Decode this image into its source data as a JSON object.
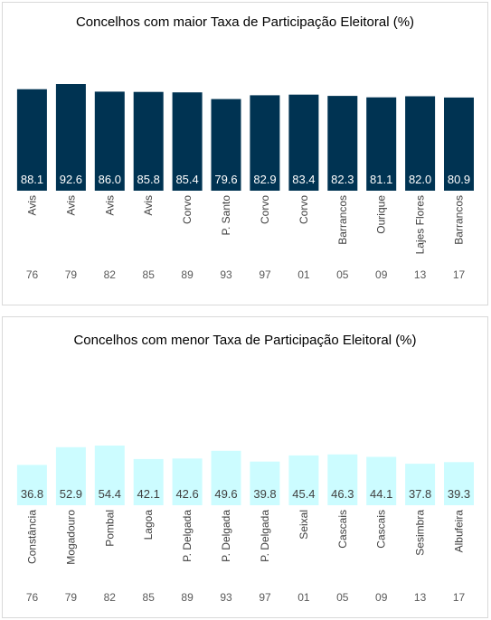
{
  "chart_data": [
    {
      "type": "bar",
      "title": "Concelhos com maior Taxa de Participação Eleitoral (%)",
      "categories": [
        "Avis",
        "Avis",
        "Avis",
        "Avis",
        "Corvo",
        "P. Santo",
        "Corvo",
        "Corvo",
        "Barrancos",
        "Ourique",
        "Lajes Flores",
        "Barrancos"
      ],
      "years": [
        "76",
        "79",
        "82",
        "85",
        "89",
        "93",
        "97",
        "01",
        "05",
        "09",
        "13",
        "17"
      ],
      "values": [
        88.1,
        92.6,
        86.0,
        85.8,
        85.4,
        79.6,
        82.9,
        83.4,
        82.3,
        81.1,
        82.0,
        80.9
      ],
      "value_labels": [
        "88.1",
        "92.6",
        "86.0",
        "85.8",
        "85.4",
        "79.6",
        "82.9",
        "83.4",
        "82.3",
        "81.1",
        "82.0",
        "80.9"
      ],
      "bar_color": "#003352",
      "label_color": "#ffffff",
      "grid": false
    },
    {
      "type": "bar",
      "title": "Concelhos com menor Taxa de Participação Eleitoral (%)",
      "categories": [
        "Constância",
        "Mogadouro",
        "Pombal",
        "Lagoa",
        "P. Delgada",
        "P. Delgada",
        "P. Delgada",
        "Seixal",
        "Cascais",
        "Cascais",
        "Sesimbra",
        "Albufeira"
      ],
      "years": [
        "76",
        "79",
        "82",
        "85",
        "89",
        "93",
        "97",
        "01",
        "05",
        "09",
        "13",
        "17"
      ],
      "values": [
        36.8,
        52.9,
        54.4,
        42.1,
        42.6,
        49.6,
        39.8,
        45.4,
        46.3,
        44.1,
        37.8,
        39.3
      ],
      "value_labels": [
        "36.8",
        "52.9",
        "54.4",
        "42.1",
        "42.6",
        "49.6",
        "39.8",
        "45.4",
        "46.3",
        "44.1",
        "37.8",
        "39.3"
      ],
      "bar_color": "#ccfcff",
      "label_color": "#404040",
      "grid": false
    }
  ]
}
